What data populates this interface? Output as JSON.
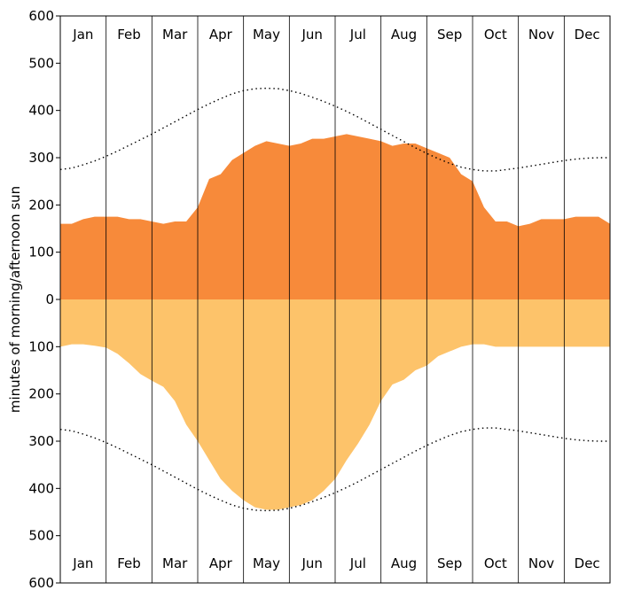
{
  "chart_data": {
    "type": "area",
    "title": "",
    "ylabel": "minutes of morning/afternoon sun",
    "ylim": [
      -600,
      600
    ],
    "yticks": [
      600,
      500,
      400,
      300,
      200,
      100,
      0,
      100,
      200,
      300,
      400,
      500,
      600
    ],
    "ytick_values": [
      600,
      500,
      400,
      300,
      200,
      100,
      0,
      -100,
      -200,
      -300,
      -400,
      -500,
      -600
    ],
    "months": [
      "Jan",
      "Feb",
      "Mar",
      "Apr",
      "May",
      "Jun",
      "Jul",
      "Aug",
      "Sep",
      "Oct",
      "Nov",
      "Dec"
    ],
    "grid": "vertical month dividers",
    "colors": {
      "morning": "#f78a3a",
      "afternoon": "#fdc36a",
      "line": "#000000"
    },
    "x": [
      0.0,
      0.25,
      0.5,
      0.75,
      1.0,
      1.25,
      1.5,
      1.75,
      2.0,
      2.25,
      2.5,
      2.75,
      3.0,
      3.25,
      3.5,
      3.75,
      4.0,
      4.25,
      4.5,
      4.75,
      5.0,
      5.25,
      5.5,
      5.75,
      6.0,
      6.25,
      6.5,
      6.75,
      7.0,
      7.25,
      7.5,
      7.75,
      8.0,
      8.25,
      8.5,
      8.75,
      9.0,
      9.25,
      9.5,
      9.75,
      10.0,
      10.25,
      10.5,
      10.75,
      11.0,
      11.25,
      11.5,
      11.75,
      12.0
    ],
    "series": [
      {
        "key": "morning",
        "values": [
          160,
          160,
          170,
          175,
          175,
          175,
          170,
          170,
          165,
          160,
          165,
          165,
          195,
          255,
          265,
          295,
          310,
          325,
          335,
          330,
          325,
          330,
          340,
          340,
          345,
          350,
          345,
          340,
          335,
          325,
          330,
          330,
          320,
          310,
          300,
          265,
          250,
          195,
          165,
          165,
          155,
          160,
          170,
          170,
          170,
          175,
          175,
          175,
          160
        ]
      },
      {
        "key": "afternoon",
        "values": [
          -100,
          -95,
          -95,
          -98,
          -102,
          -115,
          -135,
          -158,
          -172,
          -185,
          -215,
          -265,
          -300,
          -340,
          -380,
          -405,
          -425,
          -440,
          -445,
          -445,
          -440,
          -435,
          -425,
          -405,
          -380,
          -340,
          -305,
          -265,
          -215,
          -180,
          -170,
          -150,
          -140,
          -120,
          -110,
          -100,
          -95,
          -95,
          -100,
          -100,
          -100,
          -100,
          -100,
          -100,
          -100,
          -100,
          -100,
          -100,
          -100
        ]
      },
      {
        "key": "day_length_top",
        "style": "dotted",
        "values": [
          275,
          278,
          285,
          293,
          303,
          314,
          326,
          338,
          350,
          363,
          376,
          389,
          402,
          414,
          425,
          435,
          442,
          446,
          447,
          446,
          442,
          436,
          428,
          419,
          409,
          398,
          386,
          373,
          360,
          347,
          334,
          321,
          309,
          298,
          288,
          280,
          275,
          272,
          272,
          275,
          278,
          282,
          286,
          290,
          294,
          297,
          299,
          300,
          300
        ]
      },
      {
        "key": "day_length_bottom",
        "style": "dotted",
        "values": [
          -275,
          -278,
          -285,
          -293,
          -303,
          -314,
          -326,
          -338,
          -350,
          -363,
          -376,
          -389,
          -402,
          -414,
          -425,
          -435,
          -442,
          -446,
          -447,
          -446,
          -442,
          -436,
          -428,
          -419,
          -409,
          -398,
          -386,
          -373,
          -360,
          -347,
          -334,
          -321,
          -309,
          -298,
          -288,
          -280,
          -275,
          -272,
          -272,
          -275,
          -278,
          -282,
          -286,
          -290,
          -294,
          -297,
          -299,
          -300,
          -300
        ]
      }
    ]
  }
}
